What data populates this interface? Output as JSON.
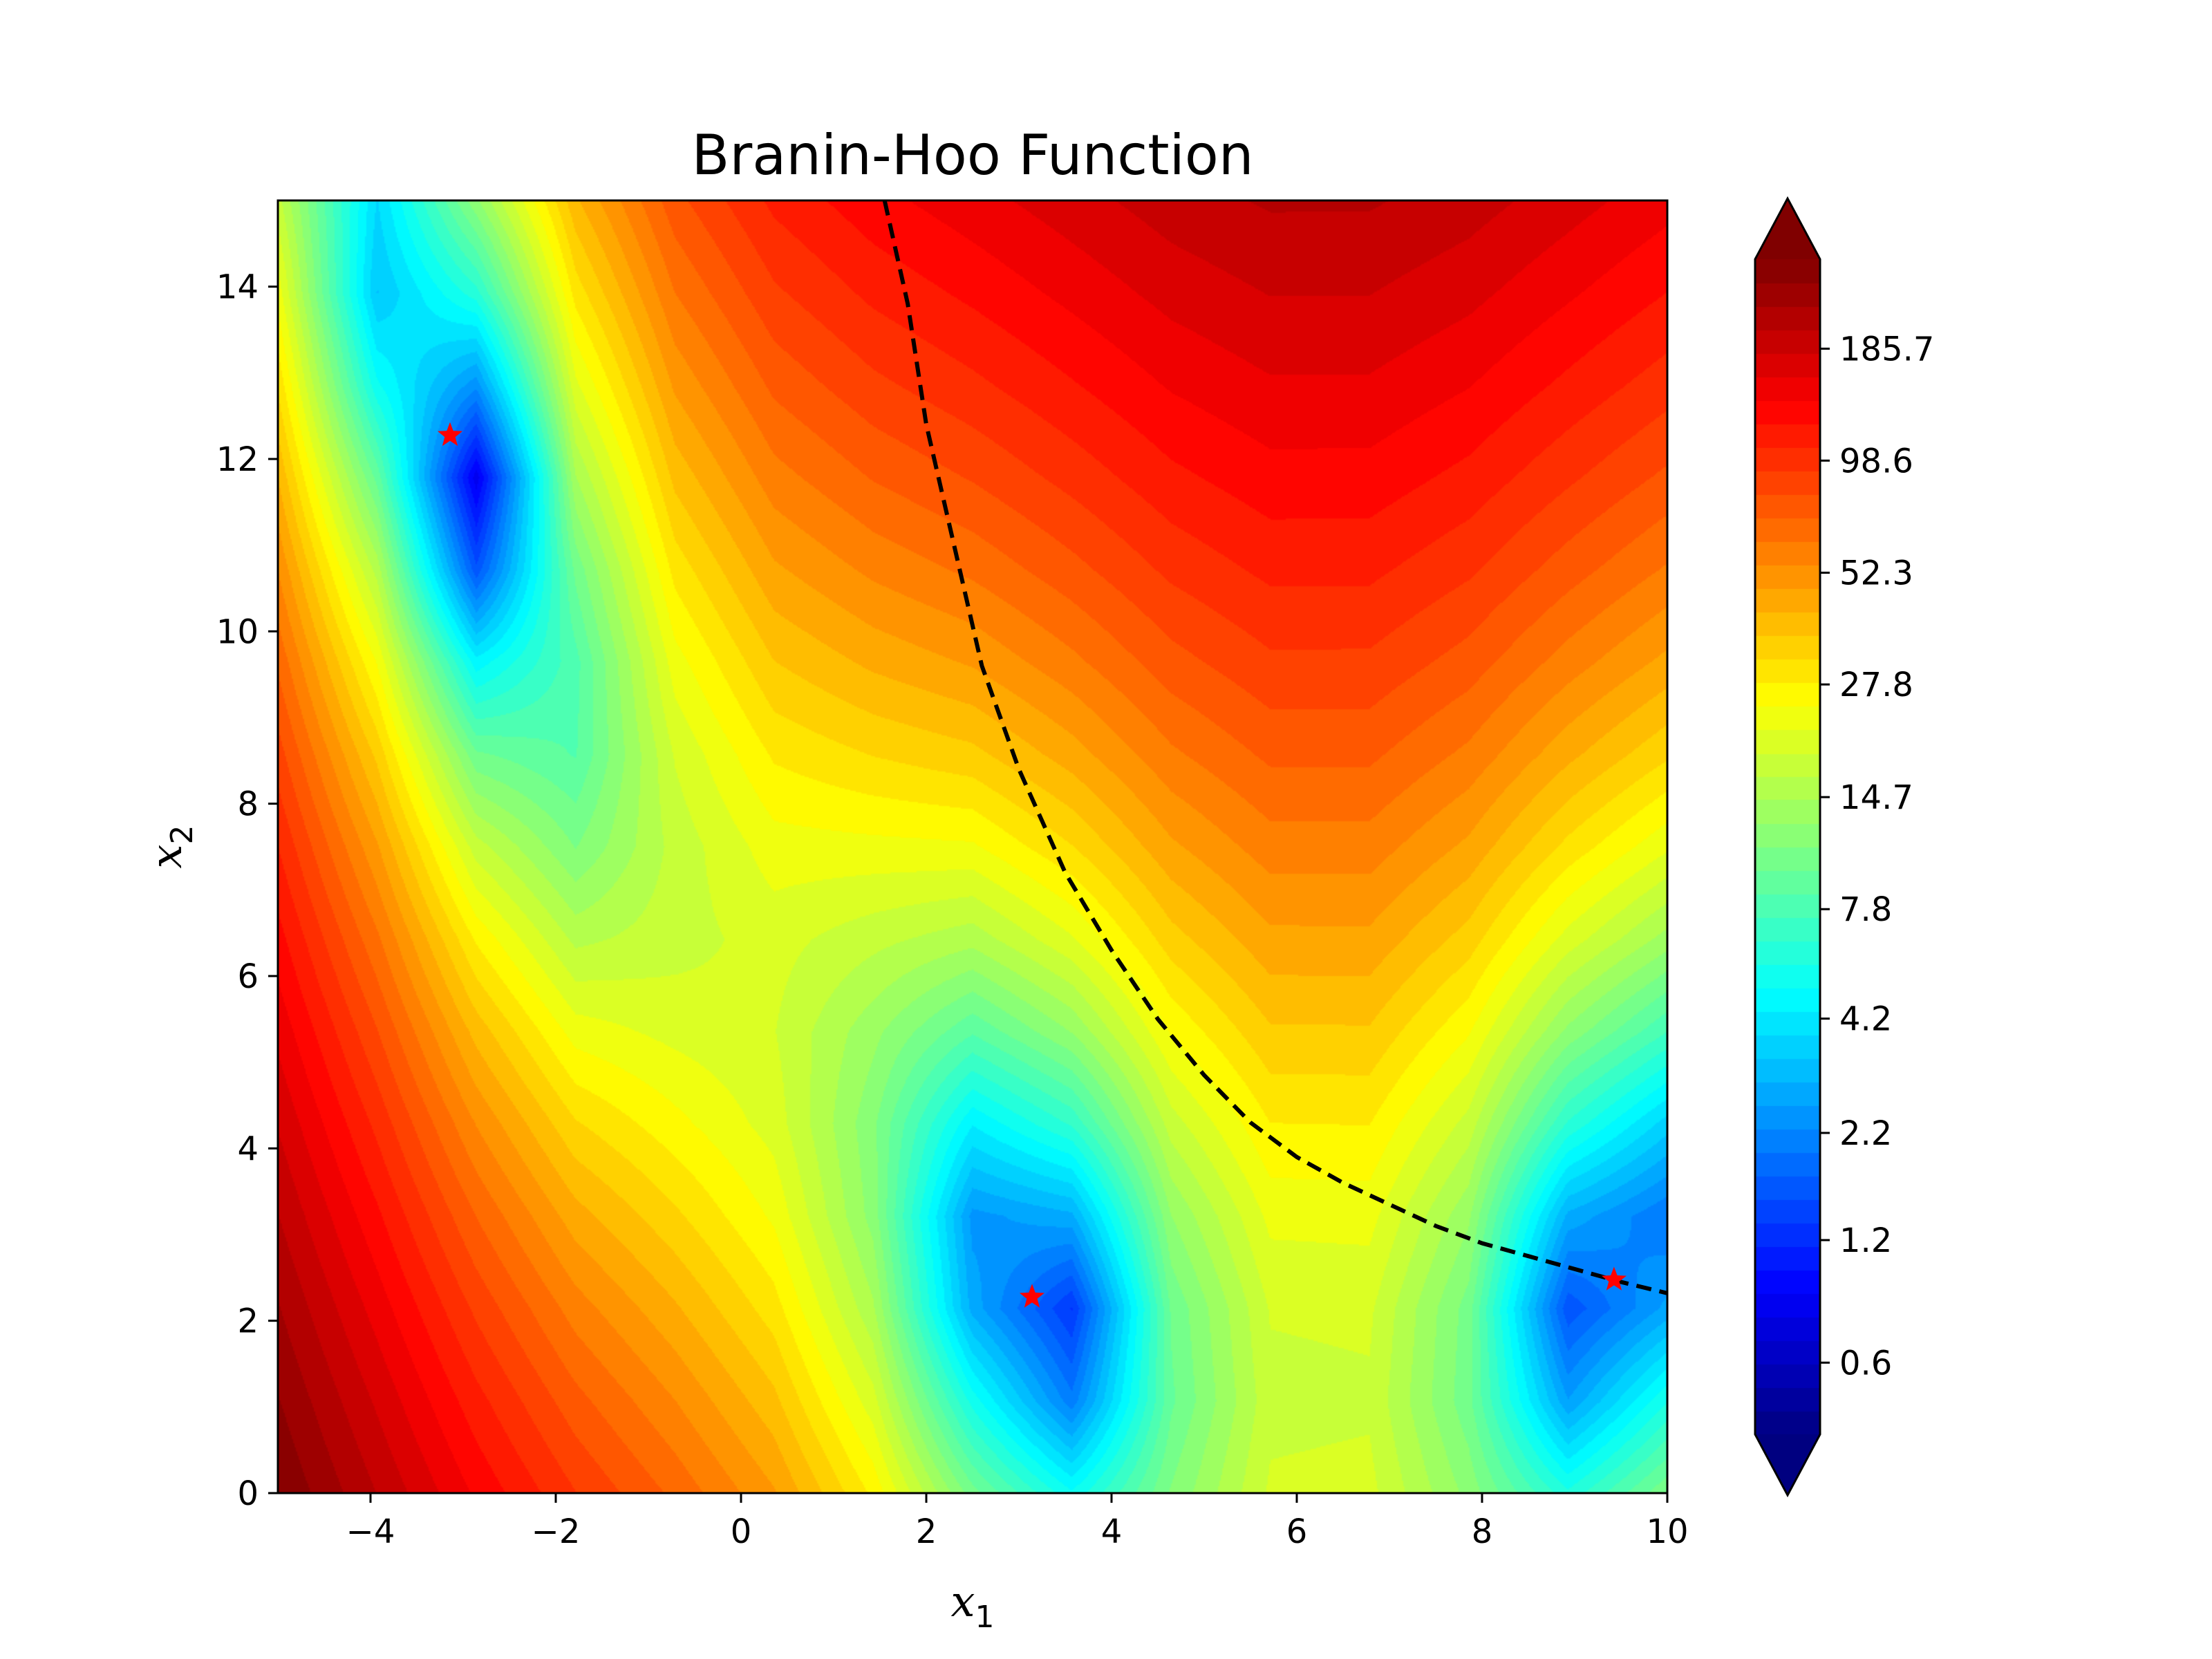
{
  "chart_data": {
    "type": "heatmap",
    "subtype": "filled-contour",
    "title": "Branin-Hoo Function",
    "xlabel": "x",
    "xlabel_sub": "1",
    "ylabel": "x",
    "ylabel_sub": "2",
    "xlim": [
      -5,
      10
    ],
    "ylim": [
      0,
      15
    ],
    "x_ticks": [
      -4,
      -2,
      0,
      2,
      4,
      6,
      8,
      10
    ],
    "x_tick_labels": [
      "−4",
      "−2",
      "0",
      "2",
      "4",
      "6",
      "8",
      "10"
    ],
    "y_ticks": [
      0,
      2,
      4,
      6,
      8,
      10,
      12,
      14
    ],
    "y_tick_labels": [
      "0",
      "2",
      "4",
      "6",
      "8",
      "10",
      "12",
      "14"
    ],
    "function": "branin",
    "branin_params": {
      "a": 1,
      "b": 0.12918450914398066,
      "c": 1.5915494309189535,
      "r": 6,
      "s": 10,
      "t": 0.039788735772973836
    },
    "grid_resolution": 15,
    "colormap": "jet",
    "scale": "log",
    "n_levels": 50,
    "colorbar": {
      "extend": "both",
      "tick_values": [
        0.6,
        1.2,
        2.2,
        4.2,
        7.8,
        14.7,
        27.8,
        52.3,
        98.6,
        185.7
      ],
      "tick_labels": [
        "0.6",
        "1.2",
        "2.2",
        "4.2",
        "7.8",
        "14.7",
        "27.8",
        "52.3",
        "98.6",
        "185.7"
      ],
      "vmin": 0.4,
      "vmax": 308
    },
    "minima": [
      {
        "x": -3.1416,
        "y": 12.275
      },
      {
        "x": 3.1416,
        "y": 2.275
      },
      {
        "x": 9.4248,
        "y": 2.475
      }
    ],
    "marker_color": "#ff0000",
    "marker_symbol": "star",
    "curve": {
      "style": "dashed",
      "color": "#000000",
      "points": [
        [
          1.55,
          15.0
        ],
        [
          1.8,
          13.8
        ],
        [
          2.0,
          12.4
        ],
        [
          2.3,
          11.0
        ],
        [
          2.6,
          9.6
        ],
        [
          3.0,
          8.4
        ],
        [
          3.5,
          7.2
        ],
        [
          4.0,
          6.3
        ],
        [
          4.5,
          5.5
        ],
        [
          5.0,
          4.85
        ],
        [
          5.5,
          4.3
        ],
        [
          6.0,
          3.9
        ],
        [
          6.5,
          3.6
        ],
        [
          7.0,
          3.35
        ],
        [
          7.5,
          3.1
        ],
        [
          8.0,
          2.9
        ],
        [
          8.5,
          2.75
        ],
        [
          9.0,
          2.6
        ],
        [
          9.5,
          2.45
        ],
        [
          10.0,
          2.32
        ]
      ]
    }
  }
}
